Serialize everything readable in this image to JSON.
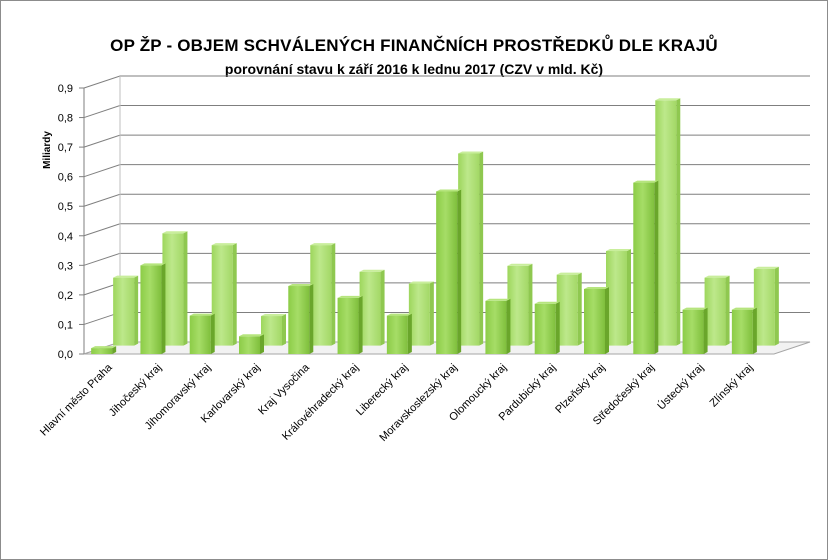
{
  "chart_data": {
    "type": "bar",
    "title": "OP ŽP - OBJEM SCHVÁLENÝCH FINANČNÍCH PROSTŘEDKŮ DLE KRAJŮ",
    "subtitle": "porovnání stavu k září 2016 k lednu 2017 (CZV v mld. Kč)",
    "ylabel": "Miliardy",
    "xlabel": "",
    "ylim": [
      0,
      0.9
    ],
    "ytick_labels": [
      "0,0",
      "0,1",
      "0,2",
      "0,3",
      "0,4",
      "0,5",
      "0,6",
      "0,7",
      "0,8",
      "0,9"
    ],
    "grid": true,
    "legend": "none",
    "categories": [
      "Hlavní město Praha",
      "Jihočeský kraj",
      "Jihomoravský kraj",
      "Karlovarský kraj",
      "Kraj Vysočina",
      "Královéhradecký kraj",
      "Liberecký kraj",
      "Moravskoslezský kraj",
      "Olomoucký kraj",
      "Pardubický kraj",
      "Plzeňský kraj",
      "Středočeský kraj",
      "Ústecký kraj",
      "Zlínský kraj"
    ],
    "series": [
      {
        "values": [
          0.02,
          0.3,
          0.13,
          0.06,
          0.23,
          0.19,
          0.13,
          0.55,
          0.18,
          0.17,
          0.22,
          0.58,
          0.15,
          0.15
        ]
      },
      {
        "values": [
          0.23,
          0.38,
          0.34,
          0.1,
          0.34,
          0.25,
          0.21,
          0.65,
          0.27,
          0.24,
          0.32,
          0.83,
          0.23,
          0.26
        ]
      }
    ],
    "colors": {
      "front_series": "#92d050",
      "back_series": "#b3e27d",
      "gridline": "#7f7f7f"
    }
  }
}
